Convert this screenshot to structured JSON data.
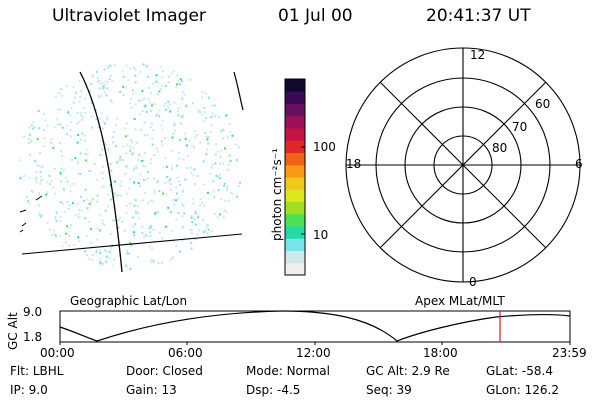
{
  "header": {
    "instrument": "Ultraviolet Imager",
    "date": "01 Jul 00",
    "time": "20:41:37 UT"
  },
  "colorbar": {
    "unit_label": "photon cm⁻²s⁻¹",
    "ticks": [
      "100",
      "10"
    ],
    "colors": [
      "#eeeeee",
      "#cfe8ec",
      "#79e4ea",
      "#22dca8",
      "#4ee054",
      "#9ee024",
      "#d8e81c",
      "#f0c81a",
      "#f89a14",
      "#f06218",
      "#e02828",
      "#c41444",
      "#9e1058",
      "#6a1060",
      "#3a0a56",
      "#10082e"
    ]
  },
  "geo_panel": {
    "label": "Geographic Lat/Lon"
  },
  "polar_plot": {
    "label": "Apex MLat/MLT",
    "lat_labels": [
      "60",
      "70",
      "80"
    ],
    "mlt_labels": {
      "top": "12",
      "left": "18",
      "right": "6",
      "bottom": "0"
    }
  },
  "altitude_plot": {
    "ylabel": "GC Alt",
    "y_ticks": [
      "9.0",
      "1.8"
    ],
    "x_ticks": [
      "00:00",
      "06:00",
      "12:00",
      "18:00",
      "23:59"
    ],
    "marker_color": "#cc2222"
  },
  "info": {
    "filter": {
      "label": "Flt:",
      "value": "LBHL"
    },
    "door": {
      "label": "Door:",
      "value": "Closed"
    },
    "mode": {
      "label": "Mode:",
      "value": "Normal"
    },
    "gc_alt": {
      "label": "GC Alt:",
      "value": "2.9 Re"
    },
    "glat": {
      "label": "GLat:",
      "value": "-58.4"
    },
    "ip": {
      "label": "IP:",
      "value": "9.0"
    },
    "gain": {
      "label": "Gain:",
      "value": "13"
    },
    "dsp": {
      "label": "Dsp:",
      "value": "-4.5"
    },
    "seq": {
      "label": "Seq:",
      "value": "39"
    },
    "glon": {
      "label": "GLon:",
      "value": "126.2"
    }
  }
}
